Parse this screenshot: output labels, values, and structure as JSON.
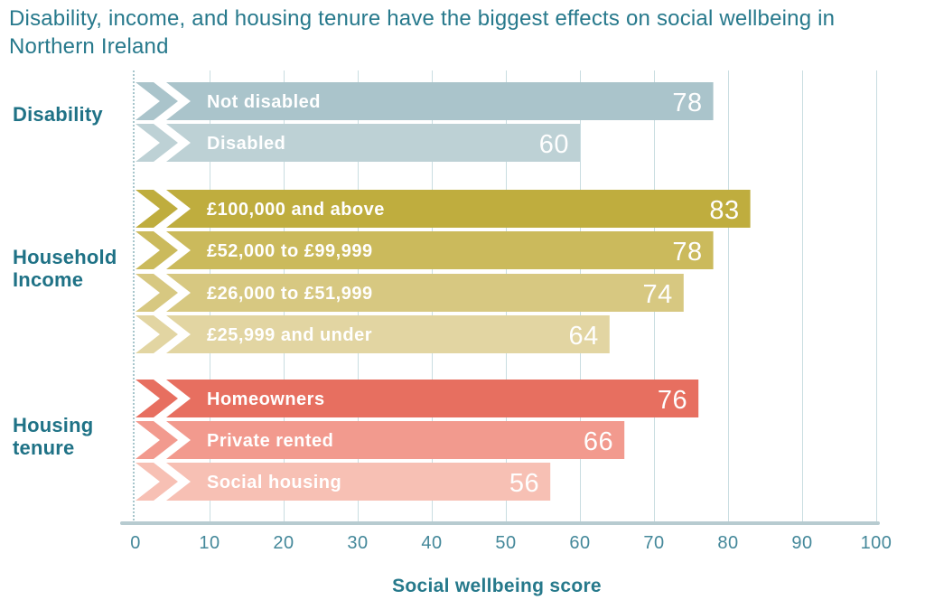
{
  "title": {
    "line1": "Disability, income, and housing tenure have the biggest effects on social wellbeing in",
    "line2": "Northern Ireland",
    "color": "#27798c"
  },
  "chart_data": {
    "type": "bar",
    "orientation": "horizontal",
    "title": "Disability, income, and housing tenure have the biggest effects on social wellbeing in Northern Ireland",
    "xlabel": "Social wellbeing score",
    "xlim": [
      0,
      100
    ],
    "x_ticks": [
      0,
      10,
      20,
      30,
      40,
      50,
      60,
      70,
      80,
      90,
      100
    ],
    "grid": true,
    "legend": false,
    "value_label_position": "inside-end",
    "groups": [
      {
        "label": "Disability",
        "bars": [
          {
            "category": "Not disabled",
            "value": 78,
            "color": "#aac4cb"
          },
          {
            "category": "Disabled",
            "value": 60,
            "color": "#bdd1d5"
          }
        ]
      },
      {
        "label": "Household Income",
        "bars": [
          {
            "category": "£100,000 and above",
            "value": 83,
            "color": "#bfad3e"
          },
          {
            "category": "£52,000 to £99,999",
            "value": 78,
            "color": "#cbba5c"
          },
          {
            "category": "£26,000 to £51,999",
            "value": 74,
            "color": "#d7c881"
          },
          {
            "category": "£25,999 and under",
            "value": 64,
            "color": "#e2d5a2"
          }
        ]
      },
      {
        "label": "Housing tenure",
        "bars": [
          {
            "category": "Homeowners",
            "value": 76,
            "color": "#e76f60"
          },
          {
            "category": "Private rented",
            "value": 66,
            "color": "#f29a8e"
          },
          {
            "category": "Social housing",
            "value": 56,
            "color": "#f7c0b4"
          }
        ]
      }
    ],
    "styles": {
      "teal_label_color": "#1f7286",
      "tick_color": "#44889a",
      "grid_color": "#c9dde1",
      "axis_line_color": "#b7cbd0",
      "bar_text_color": "#ffffff"
    }
  }
}
